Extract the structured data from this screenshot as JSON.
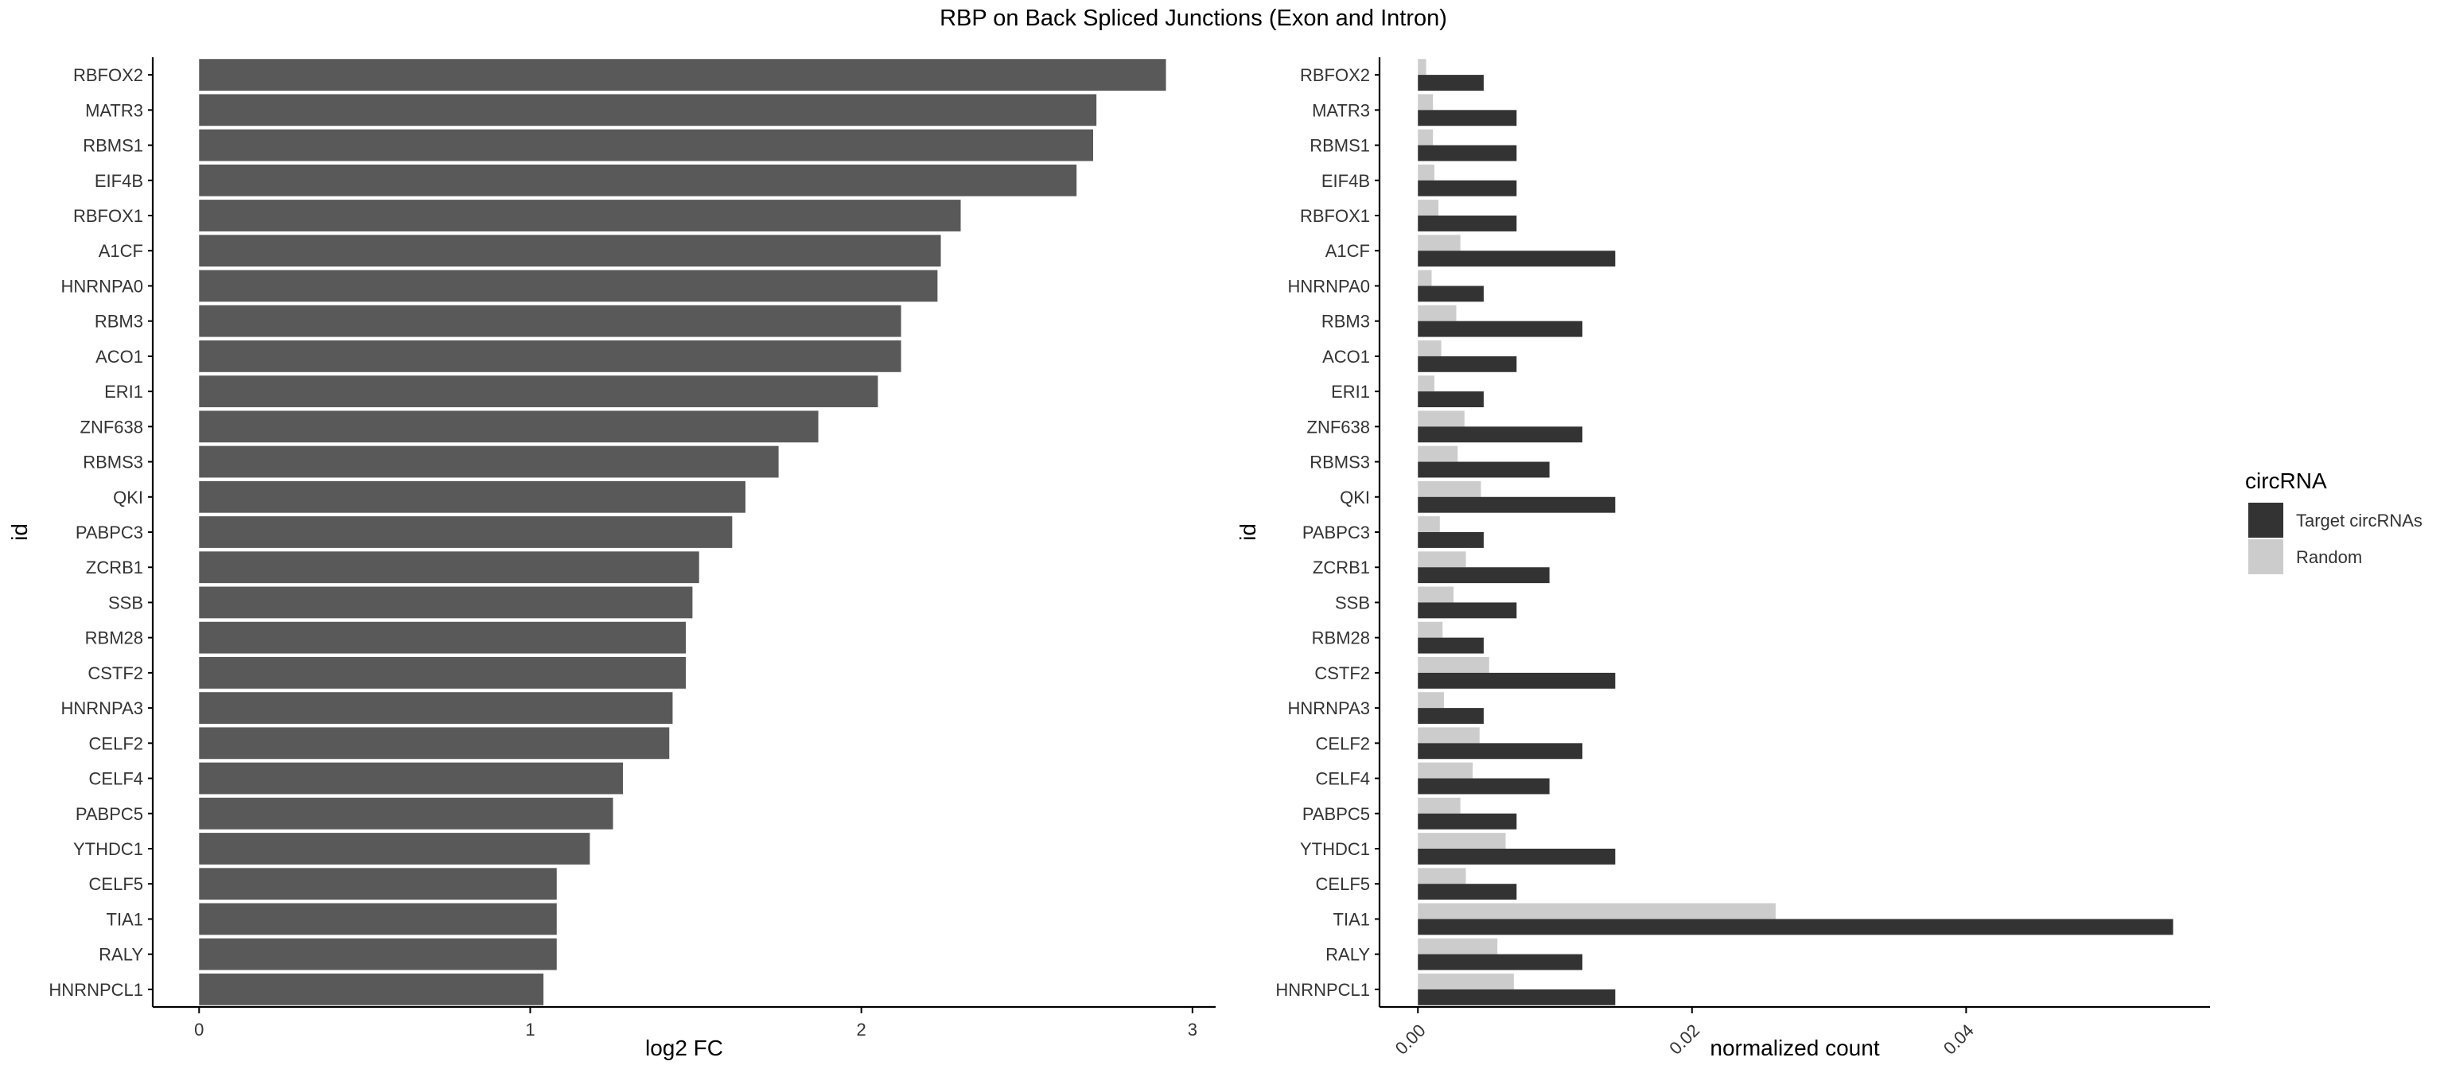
{
  "title": "RBP on Back Spliced Junctions (Exon and Intron)",
  "colors": {
    "bar_left": "#595959",
    "target": "#333333",
    "random": "#cccccc",
    "axis": "#000000",
    "text": "#333333"
  },
  "chart_data": [
    {
      "type": "bar",
      "orientation": "horizontal",
      "xlabel": "log2 FC",
      "ylabel": "id",
      "xlim": [
        -0.14,
        3.07
      ],
      "xticks": [
        0,
        1,
        2,
        3
      ],
      "grid": false,
      "categories": [
        "RBFOX2",
        "MATR3",
        "RBMS1",
        "EIF4B",
        "RBFOX1",
        "A1CF",
        "HNRNPA0",
        "RBM3",
        "ACO1",
        "ERI1",
        "ZNF638",
        "RBMS3",
        "QKI",
        "PABPC3",
        "ZCRB1",
        "SSB",
        "RBM28",
        "CSTF2",
        "HNRNPA3",
        "CELF2",
        "CELF4",
        "PABPC5",
        "YTHDC1",
        "CELF5",
        "TIA1",
        "RALY",
        "HNRNPCL1"
      ],
      "values": [
        2.92,
        2.71,
        2.7,
        2.65,
        2.3,
        2.24,
        2.23,
        2.12,
        2.12,
        2.05,
        1.87,
        1.75,
        1.65,
        1.61,
        1.51,
        1.49,
        1.47,
        1.47,
        1.43,
        1.42,
        1.28,
        1.25,
        1.18,
        1.08,
        1.08,
        1.08,
        1.04
      ]
    },
    {
      "type": "bar",
      "orientation": "horizontal",
      "grouped": true,
      "xlabel": "normalized count",
      "ylabel": "id",
      "xlim": [
        -0.0028,
        0.0578
      ],
      "xticks": [
        "0.00",
        "0.02",
        "0.04"
      ],
      "xtick_values": [
        0,
        0.02,
        0.04
      ],
      "grid": false,
      "legend": {
        "title": "circRNA",
        "position": "right"
      },
      "categories": [
        "RBFOX2",
        "MATR3",
        "RBMS1",
        "EIF4B",
        "RBFOX1",
        "A1CF",
        "HNRNPA0",
        "RBM3",
        "ACO1",
        "ERI1",
        "ZNF638",
        "RBMS3",
        "QKI",
        "PABPC3",
        "ZCRB1",
        "SSB",
        "RBM28",
        "CSTF2",
        "HNRNPA3",
        "CELF2",
        "CELF4",
        "PABPC5",
        "YTHDC1",
        "CELF5",
        "TIA1",
        "RALY",
        "HNRNPCL1"
      ],
      "series": [
        {
          "name": "Target circRNAs",
          "color": "#333333",
          "values": [
            0.0048,
            0.0072,
            0.0072,
            0.0072,
            0.0072,
            0.0144,
            0.0048,
            0.012,
            0.0072,
            0.0048,
            0.012,
            0.0096,
            0.0144,
            0.0048,
            0.0096,
            0.0072,
            0.0048,
            0.0144,
            0.0048,
            0.012,
            0.0096,
            0.0072,
            0.0144,
            0.0072,
            0.0551,
            0.012,
            0.0144
          ]
        },
        {
          "name": "Random",
          "color": "#cccccc",
          "values": [
            0.0006,
            0.0011,
            0.0011,
            0.0012,
            0.0015,
            0.0031,
            0.001,
            0.0028,
            0.0017,
            0.0012,
            0.0034,
            0.0029,
            0.0046,
            0.0016,
            0.0035,
            0.0026,
            0.0018,
            0.0052,
            0.0019,
            0.0045,
            0.004,
            0.0031,
            0.0064,
            0.0035,
            0.0261,
            0.0058,
            0.007
          ]
        }
      ]
    }
  ]
}
